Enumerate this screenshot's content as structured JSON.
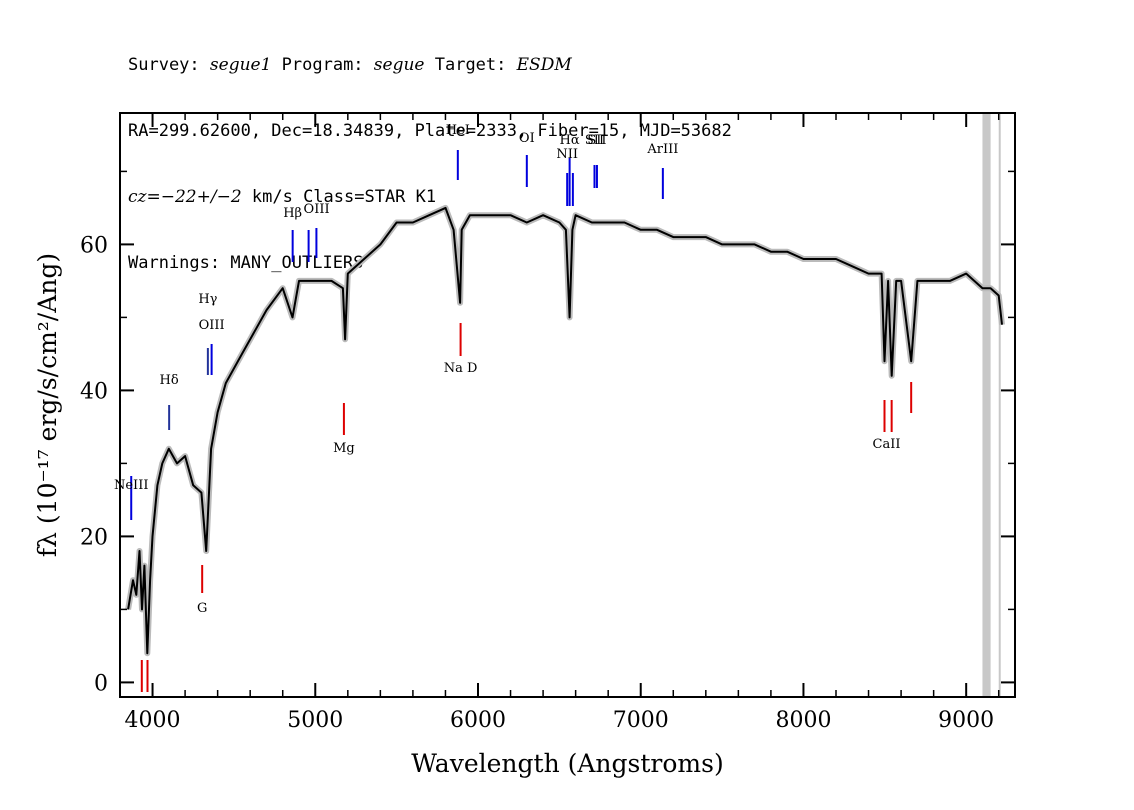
{
  "header": {
    "survey_label": "Survey:",
    "survey": "segue1",
    "program_label": "Program:",
    "program": "segue",
    "target_label": "Target:",
    "target": "ESDM",
    "line2": "RA=299.62600, Dec=18.34839, Plate=2333, Fiber=15, MJD=53682",
    "cz_prefix": "cz=",
    "cz_value": "−22+/−2",
    "cz_suffix": " km/s Class=STAR K1",
    "warnings": "Warnings: MANY_OUTLIERS"
  },
  "chart_data": {
    "type": "line",
    "xlabel": "Wavelength (Angstroms)",
    "ylabel": "fλ (10⁻¹⁷ erg/s/cm²/Ang)",
    "xlim": [
      3800,
      9300
    ],
    "ylim": [
      -2,
      78
    ],
    "xticks": [
      4000,
      5000,
      6000,
      7000,
      8000,
      9000
    ],
    "yticks": [
      0,
      20,
      40,
      60
    ],
    "xtick_labels": [
      "4000",
      "5000",
      "6000",
      "7000",
      "8000",
      "9000"
    ],
    "ytick_labels": [
      "0",
      "20",
      "40",
      "60"
    ],
    "series": [
      {
        "color": "#000000",
        "x": [
          3850,
          3880,
          3900,
          3920,
          3935,
          3950,
          3968,
          3985,
          4000,
          4030,
          4060,
          4100,
          4150,
          4200,
          4250,
          4300,
          4330,
          4360,
          4400,
          4450,
          4500,
          4550,
          4600,
          4700,
          4800,
          4860,
          4900,
          5000,
          5100,
          5170,
          5183,
          5200,
          5300,
          5400,
          5500,
          5600,
          5700,
          5800,
          5850,
          5890,
          5900,
          5950,
          6000,
          6100,
          6200,
          6300,
          6400,
          6500,
          6540,
          6563,
          6580,
          6600,
          6700,
          6800,
          6900,
          7000,
          7100,
          7200,
          7300,
          7400,
          7500,
          7600,
          7700,
          7800,
          7900,
          8000,
          8100,
          8200,
          8300,
          8400,
          8480,
          8498,
          8520,
          8542,
          8570,
          8600,
          8662,
          8700,
          8800,
          8900,
          9000,
          9100,
          9150,
          9200,
          9220
        ],
        "y": [
          10,
          14,
          12,
          18,
          10,
          16,
          4,
          14,
          20,
          27,
          30,
          32,
          30,
          31,
          27,
          26,
          18,
          32,
          37,
          41,
          43,
          45,
          47,
          51,
          54,
          50,
          55,
          55,
          55,
          54,
          47,
          56,
          58,
          60,
          63,
          63,
          64,
          65,
          62,
          52,
          62,
          64,
          64,
          64,
          64,
          63,
          64,
          63,
          62,
          50,
          62,
          64,
          63,
          63,
          63,
          62,
          62,
          61,
          61,
          61,
          60,
          60,
          60,
          59,
          59,
          58,
          58,
          58,
          57,
          56,
          56,
          44,
          55,
          42,
          55,
          55,
          44,
          55,
          55,
          55,
          56,
          54,
          54,
          53,
          49
        ]
      }
    ],
    "emission_lines": [
      {
        "label": "NeIII",
        "wavelength": 3869
      },
      {
        "label": "Hδ",
        "wavelength": 4102
      },
      {
        "label": "Hγ",
        "wavelength": 4340
      },
      {
        "label": "OIII",
        "wavelength": 4363
      },
      {
        "label": "Hβ",
        "wavelength": 4861
      },
      {
        "label": "OIII",
        "wavelength": 4959
      },
      {
        "label": "OIII",
        "wavelength": 5007
      },
      {
        "label": "HeI",
        "wavelength": 5876
      },
      {
        "label": "OI",
        "wavelength": 6300
      },
      {
        "label": "NII",
        "wavelength": 6548
      },
      {
        "label": "Hα",
        "wavelength": 6563
      },
      {
        "label": "NII",
        "wavelength": 6583
      },
      {
        "label": "SII",
        "wavelength": 6716
      },
      {
        "label": "SII",
        "wavelength": 6731
      },
      {
        "label": "ArIII",
        "wavelength": 7136
      }
    ],
    "absorption_lines": [
      {
        "label": "G",
        "wavelength": 4305
      },
      {
        "label": "Mg",
        "wavelength": 5176
      },
      {
        "label": "Na  D",
        "wavelength": 5893
      },
      {
        "label": "CaII",
        "wavelength": 8498
      },
      {
        "label": "CaII",
        "wavelength": 8542
      },
      {
        "label": "CaII",
        "wavelength": 8662
      },
      {
        "label": "",
        "wavelength": 3934
      },
      {
        "label": "",
        "wavelength": 3969
      }
    ],
    "masked_regions": [
      {
        "x0": 9100,
        "x1": 9150
      },
      {
        "x0": 9200,
        "x1": 9210
      }
    ],
    "colors": {
      "spectrum": "#000000",
      "error_band": "#bbbbbb",
      "emission": "#0000dd",
      "absorption": "#dd0000",
      "mask": "#c8c8c8"
    }
  }
}
